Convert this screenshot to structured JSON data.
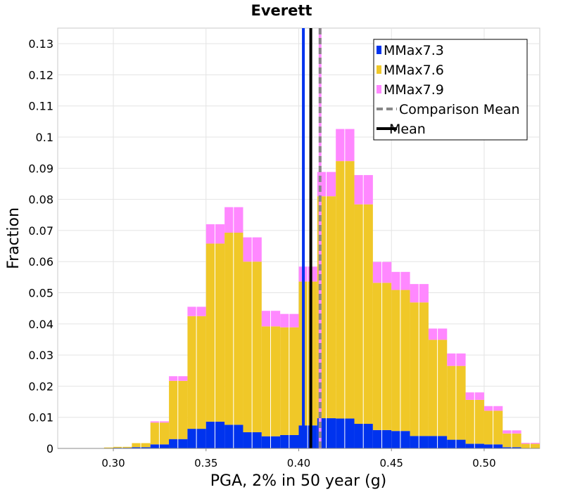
{
  "chart_data": {
    "type": "bar",
    "stacked": true,
    "title": "Everett",
    "xlabel": "PGA, 2% in 50 year (g)",
    "ylabel": "Fraction",
    "xlim": [
      0.27,
      0.53
    ],
    "ylim": [
      0,
      0.135
    ],
    "grid": true,
    "legend_position": "top-right",
    "x_ticks": [
      {
        "value": 0.3,
        "label": "0.30"
      },
      {
        "value": 0.35,
        "label": "0.35"
      },
      {
        "value": 0.4,
        "label": "0.40"
      },
      {
        "value": 0.45,
        "label": "0.45"
      },
      {
        "value": 0.5,
        "label": "0.50"
      }
    ],
    "y_ticks": [
      {
        "value": 0,
        "label": "0"
      },
      {
        "value": 0.01,
        "label": "0.01"
      },
      {
        "value": 0.02,
        "label": "0.02"
      },
      {
        "value": 0.03,
        "label": "0.03"
      },
      {
        "value": 0.04,
        "label": "0.04"
      },
      {
        "value": 0.05,
        "label": "0.05"
      },
      {
        "value": 0.06,
        "label": "0.06"
      },
      {
        "value": 0.07,
        "label": "0.07"
      },
      {
        "value": 0.08,
        "label": "0.08"
      },
      {
        "value": 0.09,
        "label": "0.09"
      },
      {
        "value": 0.1,
        "label": "0.1"
      },
      {
        "value": 0.11,
        "label": "0.11"
      },
      {
        "value": 0.12,
        "label": "0.12"
      },
      {
        "value": 0.13,
        "label": "0.13"
      }
    ],
    "bin_width": 0.005,
    "bin_centers": [
      0.2875,
      0.2925,
      0.2975,
      0.3025,
      0.3075,
      0.3125,
      0.3175,
      0.3225,
      0.3275,
      0.3325,
      0.3375,
      0.3425,
      0.3475,
      0.3525,
      0.3575,
      0.3625,
      0.3675,
      0.3725,
      0.3775,
      0.3825,
      0.3875,
      0.3925,
      0.3975,
      0.4025,
      0.4075,
      0.4125,
      0.4175,
      0.4225,
      0.4275,
      0.4325,
      0.4375,
      0.4425,
      0.4475,
      0.4525,
      0.4575,
      0.4625,
      0.4675,
      0.4725,
      0.4775,
      0.4825,
      0.4875,
      0.4925,
      0.4975,
      0.5025,
      0.5075,
      0.5125,
      0.5175,
      0.5225,
      0.5275
    ],
    "series": [
      {
        "name": "MMax7.3",
        "color": "#0033ee",
        "values": [
          0,
          0,
          0,
          0.0002,
          0.0002,
          0.0004,
          0.0004,
          0.0013,
          0.0013,
          0.003,
          0.003,
          0.0063,
          0.0063,
          0.0086,
          0.0086,
          0.0076,
          0.0076,
          0.0052,
          0.0052,
          0.0039,
          0.0039,
          0.0043,
          0.0043,
          0.0074,
          0.0074,
          0.0097,
          0.0097,
          0.0096,
          0.0096,
          0.0079,
          0.0079,
          0.0059,
          0.0059,
          0.0056,
          0.0056,
          0.004,
          0.004,
          0.004,
          0.004,
          0.0028,
          0.0028,
          0.0015,
          0.0015,
          0.0013,
          0.0013,
          0.0004,
          0.0004,
          0,
          0
        ]
      },
      {
        "name": "MMax7.6",
        "color": "#f0c828",
        "values": [
          0,
          0,
          0.0003,
          0.0003,
          0.0003,
          0.0013,
          0.0013,
          0.007,
          0.007,
          0.0187,
          0.0187,
          0.0362,
          0.0362,
          0.0572,
          0.0572,
          0.0617,
          0.0617,
          0.0548,
          0.0548,
          0.0353,
          0.0353,
          0.0346,
          0.0346,
          0.0462,
          0.0462,
          0.0713,
          0.0713,
          0.0827,
          0.0827,
          0.0705,
          0.0705,
          0.0473,
          0.0473,
          0.0453,
          0.0453,
          0.0429,
          0.0429,
          0.0309,
          0.0309,
          0.0237,
          0.0237,
          0.0141,
          0.0141,
          0.0108,
          0.0108,
          0.0044,
          0.0044,
          0.0015,
          0.0015
        ]
      },
      {
        "name": "MMax7.9",
        "color": "#ff88ff",
        "values": [
          0,
          0,
          0,
          0,
          0,
          0,
          0,
          0.0004,
          0.0004,
          0.0015,
          0.0015,
          0.003,
          0.003,
          0.0062,
          0.0062,
          0.0082,
          0.0082,
          0.0078,
          0.0078,
          0.005,
          0.005,
          0.0043,
          0.0043,
          0.0048,
          0.0048,
          0.0078,
          0.0078,
          0.0103,
          0.0103,
          0.0094,
          0.0094,
          0.0067,
          0.0067,
          0.0058,
          0.0058,
          0.0059,
          0.0059,
          0.0036,
          0.0036,
          0.004,
          0.004,
          0.0024,
          0.0024,
          0.0015,
          0.0015,
          0.001,
          0.001,
          0.0003,
          0.0003
        ]
      }
    ],
    "vertical_lines": [
      {
        "name": "MMax7.3 mean",
        "x": 0.4025,
        "color": "#0033ee",
        "style": "solid"
      },
      {
        "name": "MMax7.9 mean",
        "x": 0.4115,
        "color": "#ff88ff",
        "style": "solid"
      },
      {
        "name": "Comparison Mean",
        "x": 0.4115,
        "color": "#888888",
        "style": "dashed"
      },
      {
        "name": "Mean",
        "x": 0.4065,
        "color": "#000000",
        "style": "solid"
      }
    ],
    "legend": [
      {
        "label": "MMax7.3",
        "kind": "box",
        "color": "#0033ee"
      },
      {
        "label": "MMax7.6",
        "kind": "box",
        "color": "#f0c828"
      },
      {
        "label": "MMax7.9",
        "kind": "box",
        "color": "#ff88ff"
      },
      {
        "label": "Comparison Mean",
        "kind": "dashed",
        "color": "#888888"
      },
      {
        "label": "Mean",
        "kind": "line",
        "color": "#000000"
      }
    ]
  }
}
